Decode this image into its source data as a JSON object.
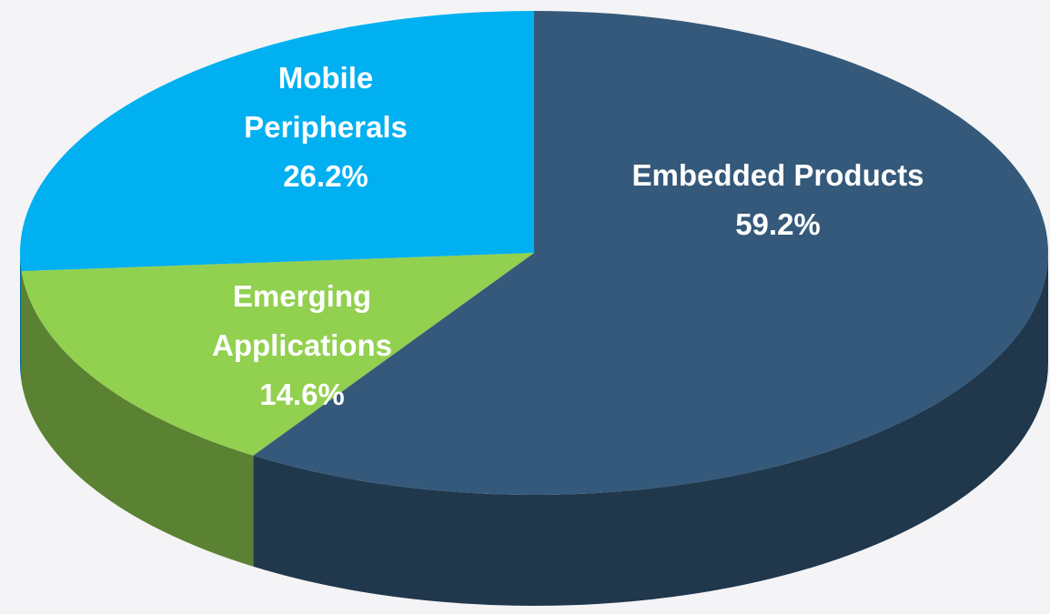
{
  "chart_data": {
    "type": "pie3d",
    "categories": [
      "Embedded Products",
      "Emerging Applications",
      "Mobile Peripherals"
    ],
    "values": [
      59.2,
      14.6,
      26.2
    ],
    "value_labels": [
      "59.2%",
      "14.6%",
      "26.2%"
    ],
    "colors": [
      "#34597a",
      "#92d050",
      "#00b0f0"
    ]
  }
}
